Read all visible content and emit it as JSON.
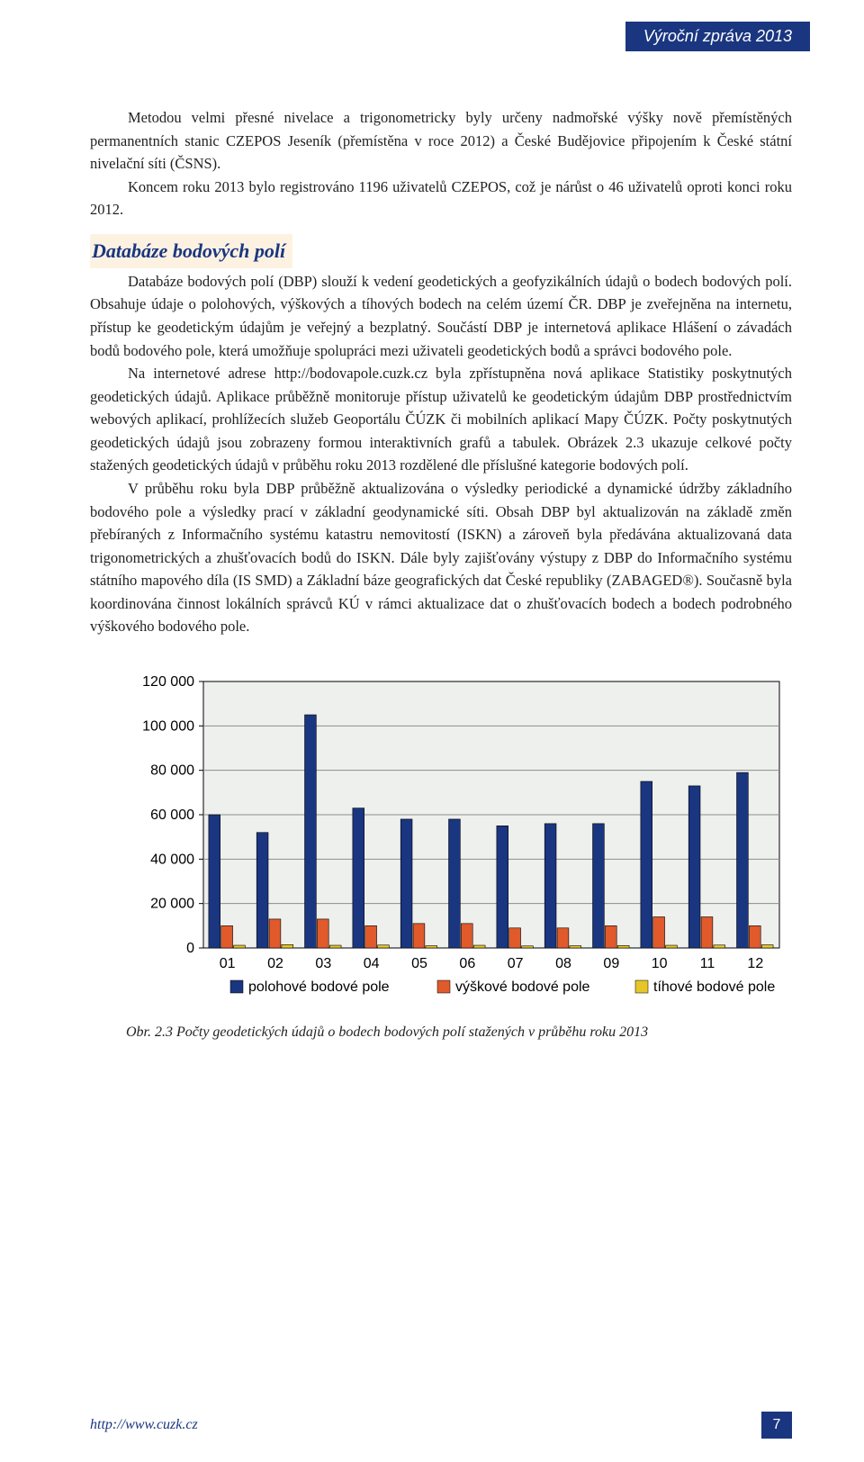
{
  "ribbon": {
    "text": "Výroční zpráva 2013"
  },
  "paragraphs": {
    "p1": "Metodou velmi přesné nivelace a trigonometricky byly určeny nadmořské výšky nově přemístěných permanentních stanic CZEPOS Jeseník (přemístěna v roce 2012) a České Budějovice připojením k České státní nivelační síti (ČSNS).",
    "p2": "Koncem roku 2013 bylo registrováno 1196 uživatelů CZEPOS, což je nárůst o 46 uživatelů oproti konci roku 2012.",
    "p3": "Databáze bodových polí (DBP) slouží k vedení geodetických a geofyzikálních údajů o bodech bodových polí. Obsahuje údaje o polohových, výškových a tíhových bodech na celém území ČR. DBP je zveřejněna na internetu, přístup ke geodetickým údajům je veřejný a bezplatný. Součástí DBP je internetová aplikace Hlášení o závadách bodů bodového pole, která umožňuje spolupráci mezi uživateli geodetických bodů a správci bodového pole.",
    "p4": "Na internetové adrese http://bodovapole.cuzk.cz byla zpřístupněna nová aplikace Statistiky poskytnutých geodetických údajů. Aplikace průběžně monitoruje přístup uživatelů ke geodetickým údajům DBP prostřednictvím webových aplikací, prohlížecích služeb Geoportálu ČÚZK či mobilních aplikací Mapy ČÚZK. Počty poskytnutých geodetických údajů jsou zobrazeny formou interaktivních grafů a tabulek. Obrázek 2.3 ukazuje celkové počty stažených geodetických údajů v průběhu roku 2013 rozdělené dle příslušné kategorie bodových polí.",
    "p5": "V průběhu roku byla DBP průběžně aktualizována o výsledky periodické a dynamické údržby základního bodového pole a výsledky prací v základní geodynamické síti. Obsah DBP byl aktualizován na základě změn přebíraných z Informačního systému katastru nemovitostí (ISKN) a zároveň byla předávána aktualizovaná data trigonometrických a zhušťovacích bodů do ISKN. Dále byly zajišťovány výstupy z DBP do Informačního systému státního mapového díla (IS SMD) a Základní báze geografických dat České republiky (ZABAGED®). Současně byla koordinována činnost lokálních správců KÚ v rámci aktualizace dat o zhušťovacích bodech a bodech podrobného výškového bodového pole."
  },
  "section_heading": "Databáze bodových polí",
  "chart": {
    "type": "bar",
    "categories": [
      "01",
      "02",
      "03",
      "04",
      "05",
      "06",
      "07",
      "08",
      "09",
      "10",
      "11",
      "12"
    ],
    "ylim": [
      0,
      120000
    ],
    "ytick_step": 20000,
    "yticks": [
      "0",
      "20 000",
      "40 000",
      "60 000",
      "80 000",
      "100 000",
      "120 000"
    ],
    "series": [
      {
        "name": "polohové bodové pole",
        "color": "#1a3680",
        "values": [
          60000,
          52000,
          105000,
          63000,
          58000,
          58000,
          55000,
          56000,
          56000,
          75000,
          73000,
          79000
        ]
      },
      {
        "name": "výškové bodové pole",
        "color": "#e05a2b",
        "values": [
          10000,
          13000,
          13000,
          10000,
          11000,
          11000,
          9000,
          9000,
          10000,
          14000,
          14000,
          10000
        ]
      },
      {
        "name": "tíhové bodové pole",
        "color": "#e6c628",
        "values": [
          1200,
          1500,
          1200,
          1300,
          1000,
          1200,
          900,
          1000,
          1100,
          1200,
          1300,
          1400
        ]
      }
    ],
    "background_color": "#ffffff",
    "plot_fill": "#eef0ee",
    "grid_color": "#8a8f87",
    "axis_color": "#000000",
    "label_fontsize": 16,
    "tick_fontsize": 16,
    "bar_group_width": 0.78,
    "bar_gap": 0.02
  },
  "chart_caption": "Obr. 2.3 Počty geodetických údajů o bodech bodových polí stažených v průběhu roku 2013",
  "footer": {
    "url": "http://www.cuzk.cz",
    "page": "7"
  }
}
